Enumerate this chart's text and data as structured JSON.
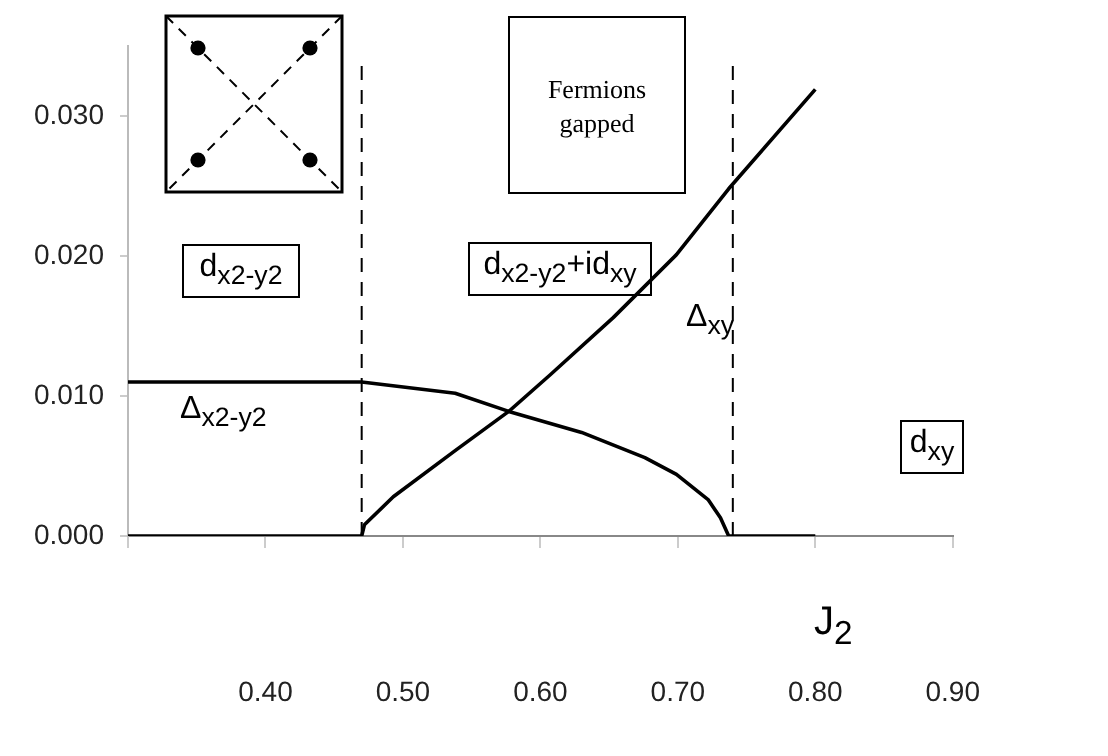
{
  "chart_data": {
    "type": "line",
    "xlabel": "J$_{2}$",
    "xlim": [
      0.3,
      0.9
    ],
    "xticks": [
      {
        "value": 0.3,
        "label": null
      },
      {
        "value": 0.4,
        "label": "0.40"
      },
      {
        "value": 0.5,
        "label": "0.50"
      },
      {
        "value": 0.6,
        "label": "0.60"
      },
      {
        "value": 0.7,
        "label": "0.70"
      },
      {
        "value": 0.8,
        "label": "0.80"
      },
      {
        "value": 0.9,
        "label": "0.90"
      }
    ],
    "ylim": [
      0,
      0.035
    ],
    "yticks": [
      {
        "value": 0,
        "label": "0.000"
      },
      {
        "value": 0.01,
        "label": "0.010"
      },
      {
        "value": 0.02,
        "label": "0.020"
      },
      {
        "value": 0.03,
        "label": "0.030"
      }
    ],
    "series": [
      {
        "name": "Δ$_{x2-y2}$",
        "color": "#000000",
        "x": [
          0.3,
          0.47,
          0.538,
          0.577,
          0.63,
          0.676,
          0.699,
          0.722,
          0.731,
          0.737,
          0.8
        ],
        "values": [
          0.011,
          0.011,
          0.0102,
          0.0089,
          0.0074,
          0.0056,
          0.0044,
          0.0026,
          0.0013,
          0,
          0
        ]
      },
      {
        "name": "Δ$_{xy}$",
        "color": "#000000",
        "x": [
          0.3,
          0.47,
          0.472,
          0.493,
          0.538,
          0.577,
          0.607,
          0.653,
          0.699,
          0.737,
          0.8
        ],
        "values": [
          0,
          0,
          0.0008,
          0.0028,
          0.0061,
          0.0089,
          0.0115,
          0.0156,
          0.0201,
          0.0248,
          0.0319
        ]
      }
    ],
    "ref_lines": [
      {
        "axis": "x",
        "value": 0.47,
        "line_style": "dashed",
        "color": "#000000"
      },
      {
        "axis": "x",
        "value": 0.74,
        "line_style": "dashed",
        "color": "#000000"
      }
    ],
    "annotations": [
      "d$_{x2-y2}$",
      "d$_{x2-y2}$+id$_{xy}$",
      "d$_{xy}$",
      "Fermions gapped"
    ],
    "grid": false,
    "legend": false,
    "marker": "none",
    "line_style": "solid"
  }
}
